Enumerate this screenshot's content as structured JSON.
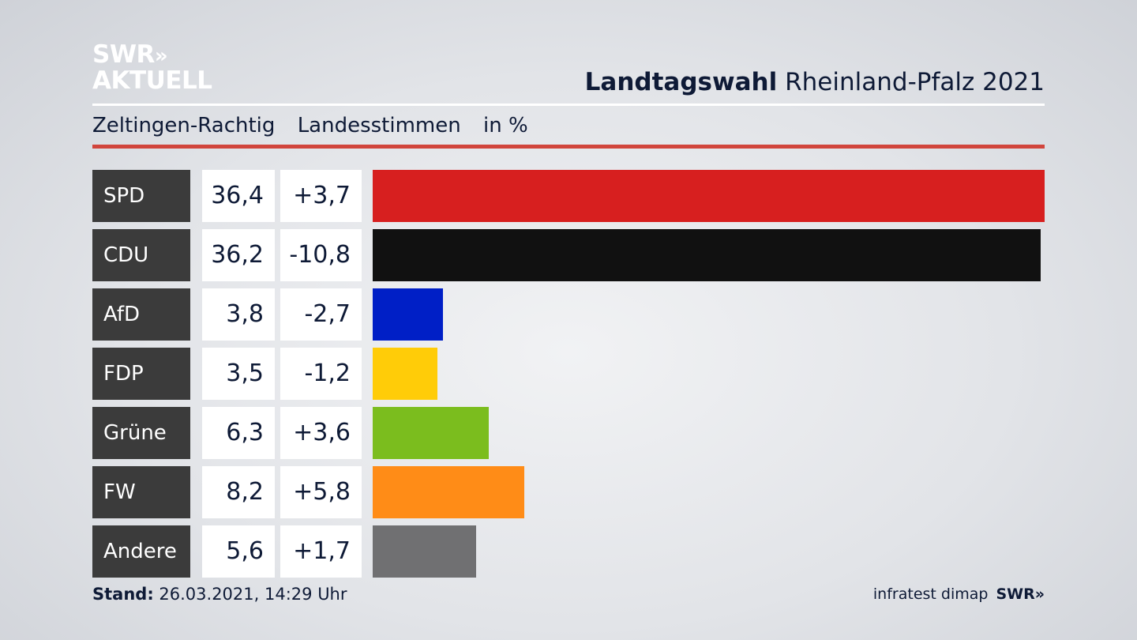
{
  "header": {
    "logo_line1": "SWR",
    "logo_chevrons": "»",
    "logo_line2": "AKTUELL",
    "title_bold": "Landtagswahl",
    "title_rest": "Rheinland-Pfalz 2021"
  },
  "subheader": {
    "place": "Zeltingen-Rachtig",
    "type": "Landesstimmen",
    "unit": "in %"
  },
  "chart_data": {
    "type": "bar",
    "categories": [
      "SPD",
      "CDU",
      "AfD",
      "FDP",
      "Grüne",
      "FW",
      "Andere"
    ],
    "values": [
      36.4,
      36.2,
      3.8,
      3.5,
      6.3,
      8.2,
      5.6
    ],
    "values_label": [
      "36,4",
      "36,2",
      "3,8",
      "3,5",
      "6,3",
      "8,2",
      "5,6"
    ],
    "diffs_label": [
      "+3,7",
      "-10,8",
      "-2,7",
      "-1,2",
      "+3,6",
      "+5,8",
      "+1,7"
    ],
    "colors": [
      "#d71f1f",
      "#111111",
      "#001fc6",
      "#ffcc08",
      "#7bbd1e",
      "#ff8c17",
      "#707072"
    ],
    "xlim": [
      0,
      36.4
    ]
  },
  "footer": {
    "stand_label": "Stand:",
    "stand_value": "26.03.2021, 14:29 Uhr",
    "source": "infratest dimap",
    "brand": "SWR»"
  }
}
